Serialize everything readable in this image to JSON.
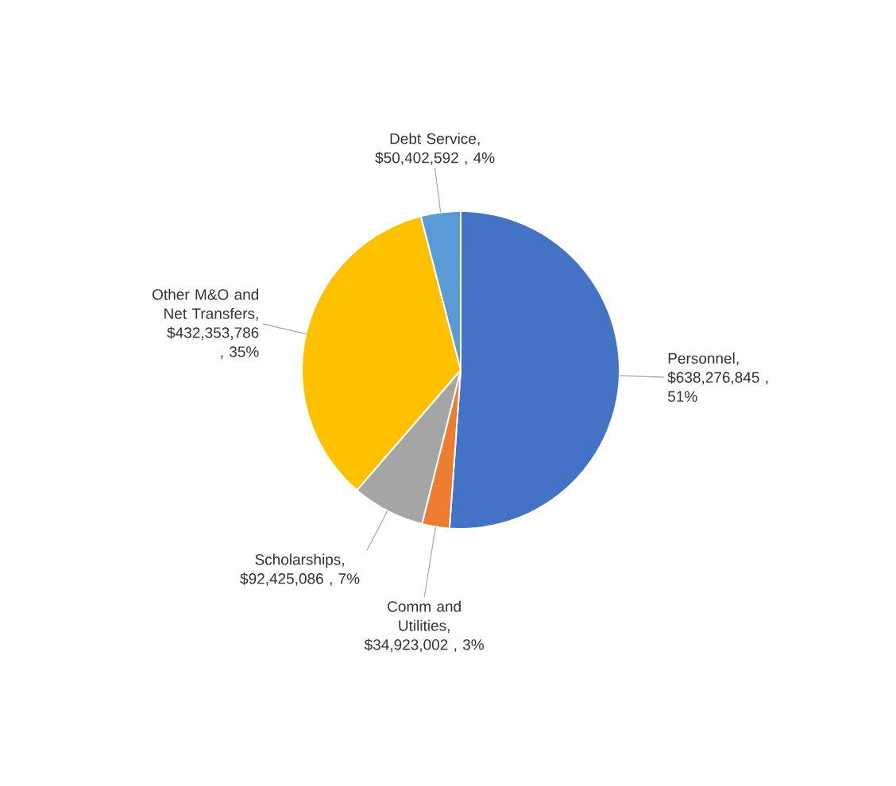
{
  "chart_data": {
    "type": "pie",
    "categories": [
      "Personnel",
      "Comm and Utilities",
      "Scholarships",
      "Other M&O and Net Transfers",
      "Debt Service"
    ],
    "values": [
      638276845,
      34923002,
      92425086,
      432353786,
      50402592
    ],
    "colors": [
      "#4472c4",
      "#ed7d31",
      "#a5a5a5",
      "#ffc000",
      "#5b9bd5"
    ],
    "value_labels": [
      ", $638,276,845 , 51%",
      ", $34,923,002 , 3%",
      ", $92,425,086 , 7%",
      ", $432,353,786 , 35%",
      ", $50,402,592 , 4%"
    ]
  }
}
